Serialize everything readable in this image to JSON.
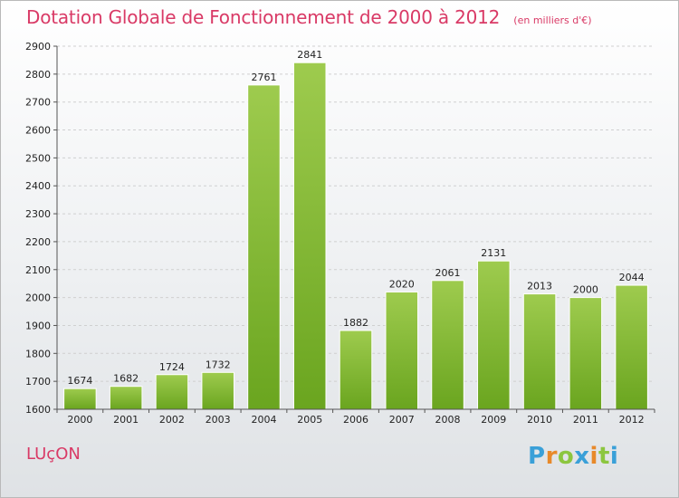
{
  "header": {
    "title": "Dotation Globale de Fonctionnement de 2000 à 2012",
    "subtitle": "(en milliers d'€)"
  },
  "footer": {
    "commune": "LUçON",
    "logo_text": "Proxiti",
    "logo_letters": [
      {
        "char": "P",
        "color": "#3aa0d8"
      },
      {
        "char": "r",
        "color": "#e8892a"
      },
      {
        "char": "o",
        "color": "#8cc63f"
      },
      {
        "char": "x",
        "color": "#3aa0d8"
      },
      {
        "char": "i",
        "color": "#e8892a"
      },
      {
        "char": "t",
        "color": "#8cc63f"
      },
      {
        "char": "i",
        "color": "#3aa0d8"
      }
    ]
  },
  "colors": {
    "title": "#d93a66",
    "bar_light": "#9ecb4e",
    "bar_dark": "#6aa51f",
    "grid": "#d0d0d0"
  },
  "chart_data": {
    "type": "bar",
    "categories": [
      "2000",
      "2001",
      "2002",
      "2003",
      "2004",
      "2005",
      "2006",
      "2007",
      "2008",
      "2009",
      "2010",
      "2011",
      "2012"
    ],
    "values": [
      1674,
      1682,
      1724,
      1732,
      2761,
      2841,
      1882,
      2020,
      2061,
      2131,
      2013,
      2000,
      2044
    ],
    "title": "Dotation Globale de Fonctionnement de 2000 à 2012",
    "subtitle": "(en milliers d'€)",
    "ylim": [
      1600,
      2900
    ],
    "yticks": [
      1600,
      1700,
      1800,
      1900,
      2000,
      2100,
      2200,
      2300,
      2400,
      2500,
      2600,
      2700,
      2800,
      2900
    ],
    "grid": true,
    "data_labels": true
  }
}
